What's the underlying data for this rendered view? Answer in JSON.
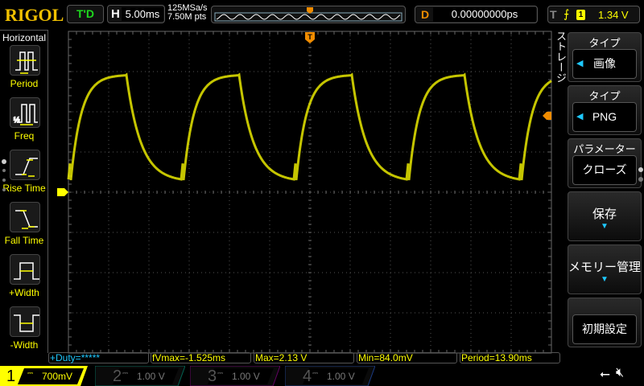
{
  "header": {
    "logo": "RIGOL",
    "run_mode": "T'D",
    "horizontal_key": "H",
    "timebase": "5.00ms",
    "sample_rate": "125MSa/s",
    "memory_depth": "7.50M pts",
    "delay_key": "D",
    "delay": "0.00000000ps",
    "trigger_key": "T",
    "trigger_edge": "rising-edge-icon",
    "trigger_source": "1",
    "trigger_level": "1.34 V"
  },
  "left_menu": {
    "title": "Horizontal",
    "items": [
      {
        "label": "Period",
        "icon": "period-icon"
      },
      {
        "label": "Freq",
        "icon": "freq-icon"
      },
      {
        "label": "Rise Time",
        "icon": "rise-time-icon"
      },
      {
        "label": "Fall Time",
        "icon": "fall-time-icon"
      },
      {
        "label": "+Width",
        "icon": "positive-width-icon"
      },
      {
        "label": "-Width",
        "icon": "negative-width-icon"
      }
    ]
  },
  "right_menu": {
    "title": "ストレージ",
    "items": [
      {
        "header": "タイプ",
        "value": "画像"
      },
      {
        "header": "タイプ",
        "value": "PNG"
      },
      {
        "header": "パラメーター",
        "value": "クローズ"
      },
      {
        "label": "保存"
      },
      {
        "label": "メモリー管理"
      },
      {
        "label": "初期設定"
      }
    ]
  },
  "measurements": [
    "+Duty=*****",
    "fVmax=-1.525ms",
    "Max=2.13 V",
    "Min=84.0mV",
    "Period=13.90ms"
  ],
  "channels": [
    {
      "num": "1",
      "coupling": "DC",
      "scale": "700mV",
      "active": true,
      "color": "#ffff00"
    },
    {
      "num": "2",
      "coupling": "DC",
      "scale": "1.00 V",
      "active": false,
      "color": "#00c0a0"
    },
    {
      "num": "3",
      "coupling": "DC",
      "scale": "1.00 V",
      "active": false,
      "color": "#c000c0"
    },
    {
      "num": "4",
      "coupling": "DC",
      "scale": "1.00 V",
      "active": false,
      "color": "#3070ff"
    }
  ],
  "markers": {
    "trigger": "T",
    "ch1_ground": "1"
  },
  "colors": {
    "ch1": "#ffff00",
    "trigger": "#f08c00",
    "accent": "#1ec8ff"
  }
}
